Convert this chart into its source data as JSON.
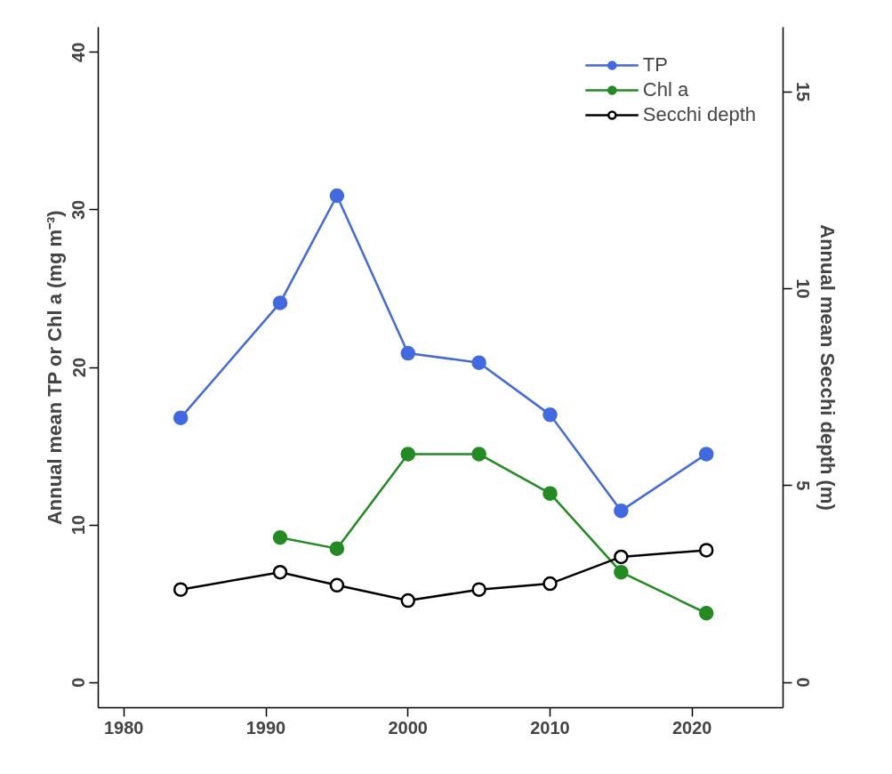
{
  "chart_data": {
    "type": "line",
    "xlabel": null,
    "ylabel": "Annual mean TP or Chl a (mg m⁻³)",
    "y2label": "Annual mean Secchi depth (m)",
    "x": [
      1984,
      1991,
      1995,
      2000,
      2005,
      2010,
      2015,
      2021
    ],
    "series": [
      {
        "name": "TP",
        "color": "#4169e1",
        "values": [
          16.8,
          24.1,
          30.9,
          20.9,
          20.3,
          17.0,
          10.9,
          14.5
        ]
      },
      {
        "name": "Chl a",
        "color": "#228b22",
        "values": [
          null,
          9.2,
          8.5,
          14.5,
          14.5,
          12.0,
          7.0,
          4.4
        ]
      },
      {
        "name": "Secchi depth",
        "color": "#000000",
        "axis": "y2",
        "values": [
          2.36,
          2.8,
          2.47,
          2.08,
          2.36,
          2.51,
          3.19,
          3.36
        ]
      }
    ],
    "xlim": [
      1978.2,
      2026.4
    ],
    "xticks": [
      1980,
      1990,
      2000,
      2010,
      2020
    ],
    "ylim": [
      -1.6,
      41.6
    ],
    "yticks": [
      0,
      10,
      20,
      30,
      40
    ],
    "y2lim": [
      -0.64,
      16.64
    ],
    "y2ticks": [
      0,
      5,
      10,
      15
    ],
    "marker": "circle",
    "line_style": "solid",
    "grid": false,
    "legend": "top right"
  }
}
